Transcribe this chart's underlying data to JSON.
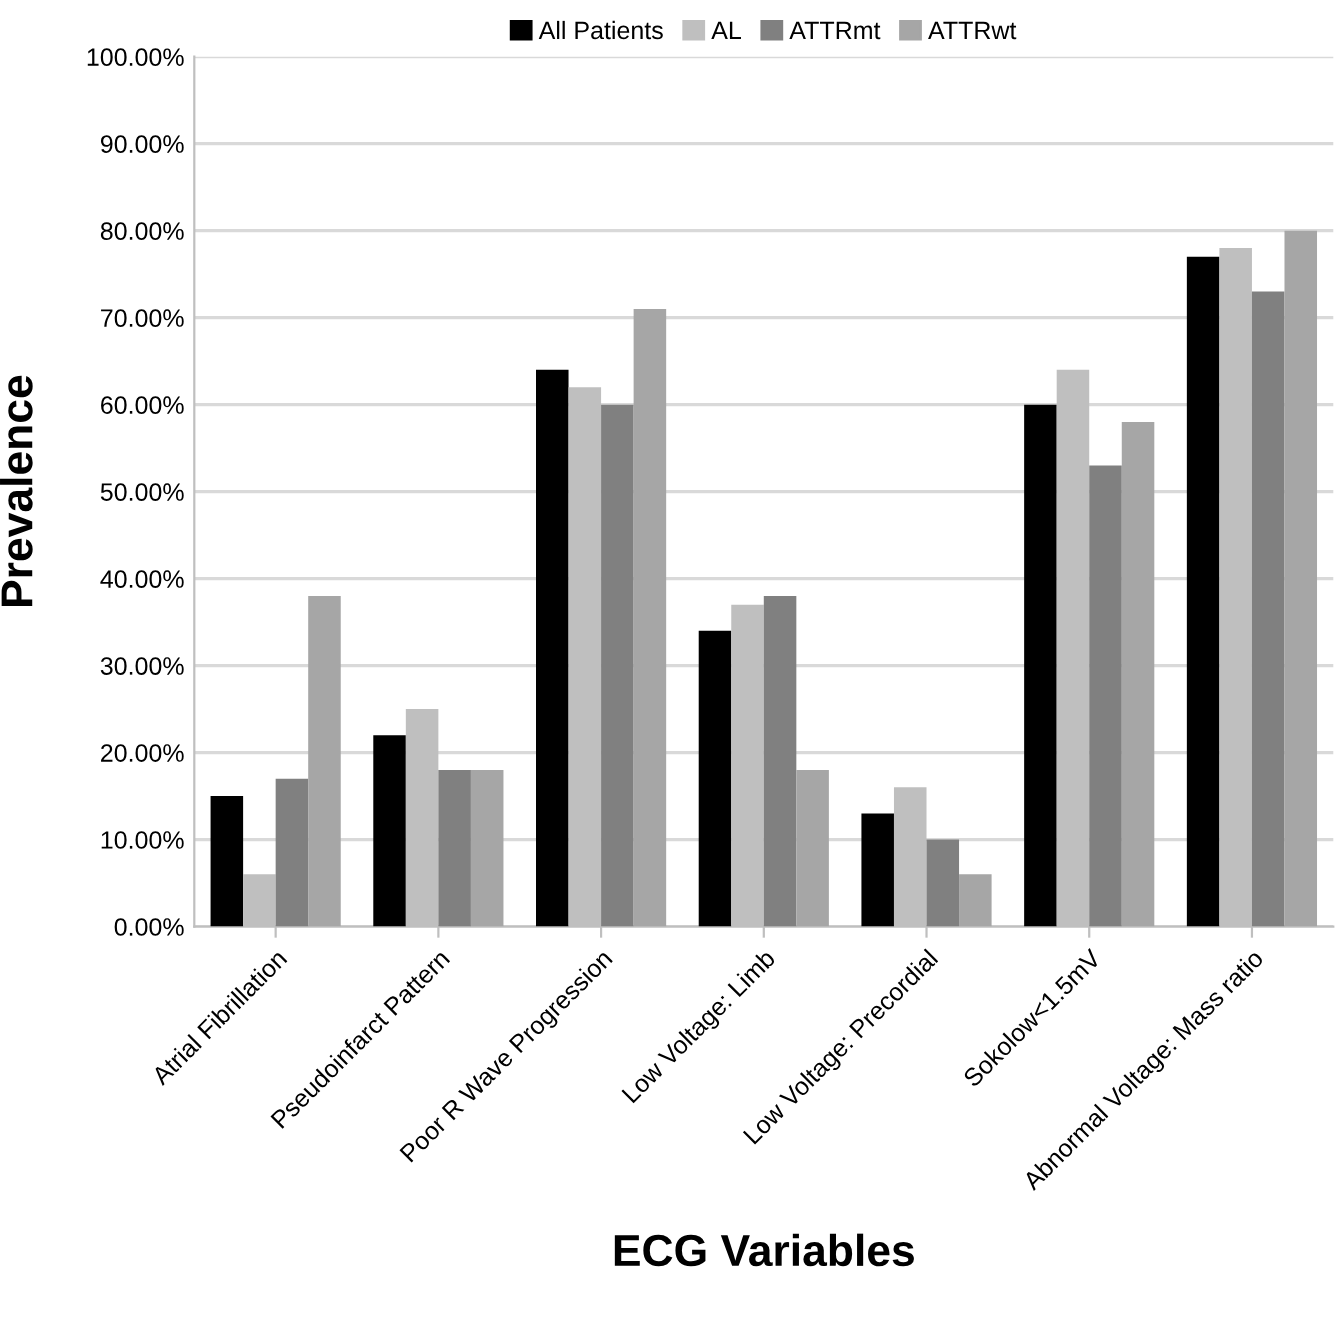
{
  "chart_data": {
    "type": "bar",
    "xlabel": "ECG Variables",
    "ylabel": "Prevalence",
    "categories": [
      "Atrial Fibrillation",
      "Pseudoinfarct Pattern",
      "Poor R Wave Progression",
      "Low Voltage: Limb",
      "Low Voltage: Precordial",
      "Sokolow<1.5mV",
      "Abnormal Voltage: Mass ratio"
    ],
    "series": [
      {
        "name": "All Patients",
        "color": "#000000",
        "values": [
          15,
          22,
          64,
          34,
          13,
          60,
          77
        ]
      },
      {
        "name": "AL",
        "color": "#bfbfbf",
        "values": [
          6,
          25,
          62,
          37,
          16,
          64,
          78
        ]
      },
      {
        "name": "ATTRmt",
        "color": "#808080",
        "values": [
          17,
          18,
          60,
          38,
          10,
          53,
          73
        ]
      },
      {
        "name": "ATTRwt",
        "color": "#a6a6a6",
        "values": [
          38,
          18,
          71,
          18,
          6,
          58,
          80
        ]
      }
    ],
    "ylim": [
      0,
      100
    ],
    "yticks": [
      {
        "value": 0,
        "label": "0.00%"
      },
      {
        "value": 10,
        "label": "10.00%"
      },
      {
        "value": 20,
        "label": "20.00%"
      },
      {
        "value": 30,
        "label": "30.00%"
      },
      {
        "value": 40,
        "label": "40.00%"
      },
      {
        "value": 50,
        "label": "50.00%"
      },
      {
        "value": 60,
        "label": "60.00%"
      },
      {
        "value": 70,
        "label": "70.00%"
      },
      {
        "value": 80,
        "label": "80.00%"
      },
      {
        "value": 90,
        "label": "90.00%"
      },
      {
        "value": 100,
        "label": "100.00%"
      }
    ],
    "grid": "y",
    "legend": "top"
  }
}
